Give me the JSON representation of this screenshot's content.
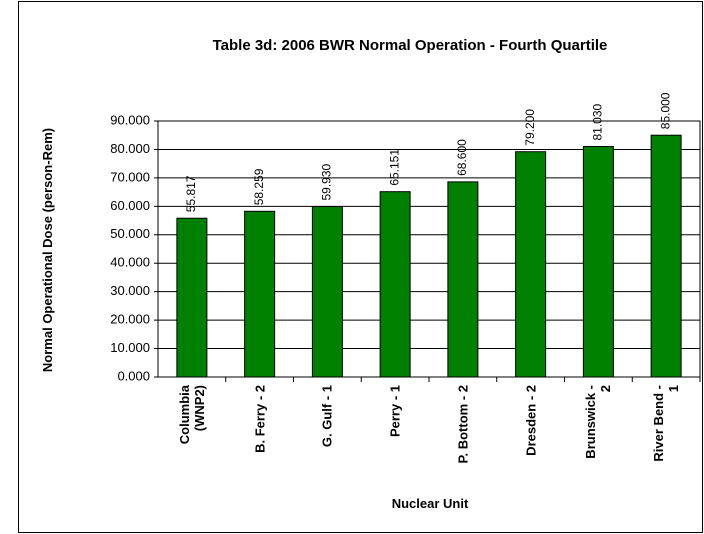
{
  "chart_data": {
    "type": "bar",
    "title": "Table 3d: 2006 BWR Normal Operation - Fourth Quartile",
    "x_label": "Nuclear Unit",
    "y_label": "Normal Operational Dose (person-Rem)",
    "categories": [
      "Columbia (WNP2)",
      "B. Ferry - 2",
      "G. Gulf - 1",
      "Perry - 1",
      "P. Bottom - 2",
      "Dresden - 2",
      "Brunswick - 2",
      "River Bend - 1"
    ],
    "values": [
      55.817,
      58.259,
      59.93,
      65.151,
      68.6,
      79.2,
      81.03,
      85
    ],
    "value_labels": [
      "55.817",
      "58.259",
      "59.930",
      "65.151",
      "68.600",
      "79.200",
      "81.030",
      "85.000"
    ],
    "color": "#008000",
    "ylim": [
      0,
      90
    ],
    "yticks": [
      {
        "value": 0,
        "label": "0.000"
      },
      {
        "value": 10,
        "label": "10.000"
      },
      {
        "value": 20,
        "label": "20.000"
      },
      {
        "value": 30,
        "label": "30.000"
      },
      {
        "value": 40,
        "label": "40.000"
      },
      {
        "value": 50,
        "label": "50.000"
      },
      {
        "value": 60,
        "label": "60.000"
      },
      {
        "value": 70,
        "label": "70.000"
      },
      {
        "value": 80,
        "label": "80.000"
      },
      {
        "value": 90,
        "label": "90.000"
      }
    ],
    "grid": true
  }
}
